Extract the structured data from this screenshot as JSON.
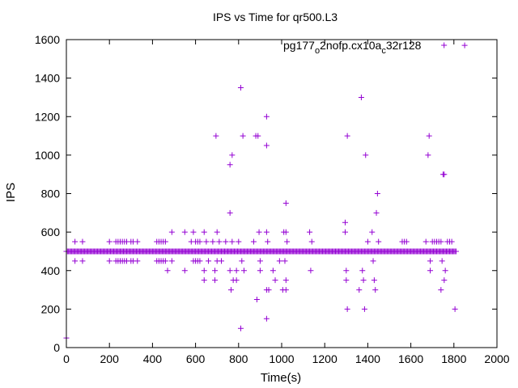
{
  "chart_data": {
    "type": "scatter",
    "title": "IPS vs Time for qr500.L3",
    "xlabel": "Time(s)",
    "ylabel": "IPS",
    "xlim": [
      0,
      2000
    ],
    "ylim": [
      0,
      1600
    ],
    "xticks": [
      "0",
      "200",
      "400",
      "600",
      "800",
      "1000",
      "1200",
      "1400",
      "1600",
      "1800",
      "2000"
    ],
    "yticks": [
      "0",
      "200",
      "400",
      "600",
      "800",
      "1000",
      "1200",
      "1400",
      "1600"
    ],
    "grid": false,
    "legend_position": "top-right",
    "marker_color": "#9400d3",
    "series": [
      {
        "legend": {
          "base": "pg177",
          "sub1": "o",
          "mid": "2nofp.cx10a",
          "sub2": "c",
          "tail": "32r128"
        },
        "baseline": {
          "y": 500,
          "x_from": 0,
          "x_to": 1810,
          "step": 5
        },
        "points": [
          [
            0,
            50
          ],
          [
            40,
            550
          ],
          [
            40,
            450
          ],
          [
            75,
            550
          ],
          [
            75,
            450
          ],
          [
            200,
            550
          ],
          [
            200,
            450
          ],
          [
            230,
            550
          ],
          [
            240,
            550
          ],
          [
            250,
            550
          ],
          [
            260,
            550
          ],
          [
            270,
            550
          ],
          [
            280,
            550
          ],
          [
            300,
            550
          ],
          [
            310,
            550
          ],
          [
            330,
            550
          ],
          [
            230,
            450
          ],
          [
            240,
            450
          ],
          [
            250,
            450
          ],
          [
            260,
            450
          ],
          [
            270,
            450
          ],
          [
            280,
            450
          ],
          [
            300,
            450
          ],
          [
            310,
            450
          ],
          [
            330,
            450
          ],
          [
            420,
            550
          ],
          [
            430,
            550
          ],
          [
            440,
            550
          ],
          [
            450,
            550
          ],
          [
            460,
            550
          ],
          [
            420,
            450
          ],
          [
            430,
            450
          ],
          [
            440,
            450
          ],
          [
            450,
            450
          ],
          [
            460,
            450
          ],
          [
            470,
            400
          ],
          [
            490,
            600
          ],
          [
            490,
            450
          ],
          [
            550,
            600
          ],
          [
            550,
            400
          ],
          [
            580,
            550
          ],
          [
            590,
            600
          ],
          [
            600,
            550
          ],
          [
            610,
            550
          ],
          [
            620,
            550
          ],
          [
            590,
            450
          ],
          [
            600,
            450
          ],
          [
            610,
            450
          ],
          [
            620,
            450
          ],
          [
            640,
            600
          ],
          [
            640,
            400
          ],
          [
            640,
            350
          ],
          [
            650,
            550
          ],
          [
            660,
            450
          ],
          [
            680,
            550
          ],
          [
            690,
            400
          ],
          [
            690,
            350
          ],
          [
            695,
            1100
          ],
          [
            700,
            600
          ],
          [
            700,
            450
          ],
          [
            710,
            550
          ],
          [
            720,
            450
          ],
          [
            740,
            550
          ],
          [
            760,
            950
          ],
          [
            760,
            700
          ],
          [
            760,
            400
          ],
          [
            765,
            300
          ],
          [
            770,
            1000
          ],
          [
            770,
            550
          ],
          [
            775,
            350
          ],
          [
            790,
            400
          ],
          [
            790,
            350
          ],
          [
            800,
            550
          ],
          [
            810,
            1350
          ],
          [
            810,
            100
          ],
          [
            815,
            450
          ],
          [
            820,
            1100
          ],
          [
            825,
            400
          ],
          [
            870,
            550
          ],
          [
            880,
            1100
          ],
          [
            885,
            250
          ],
          [
            890,
            1100
          ],
          [
            895,
            600
          ],
          [
            900,
            450
          ],
          [
            900,
            400
          ],
          [
            930,
            1200
          ],
          [
            930,
            1050
          ],
          [
            930,
            600
          ],
          [
            930,
            300
          ],
          [
            930,
            150
          ],
          [
            935,
            550
          ],
          [
            940,
            300
          ],
          [
            960,
            400
          ],
          [
            970,
            350
          ],
          [
            990,
            450
          ],
          [
            1005,
            300
          ],
          [
            1010,
            600
          ],
          [
            1015,
            450
          ],
          [
            1020,
            750
          ],
          [
            1020,
            600
          ],
          [
            1020,
            350
          ],
          [
            1020,
            300
          ],
          [
            1025,
            550
          ],
          [
            1130,
            600
          ],
          [
            1135,
            400
          ],
          [
            1140,
            550
          ],
          [
            1295,
            650
          ],
          [
            1295,
            600
          ],
          [
            1300,
            400
          ],
          [
            1300,
            350
          ],
          [
            1305,
            200
          ],
          [
            1305,
            1100
          ],
          [
            1360,
            300
          ],
          [
            1370,
            1300
          ],
          [
            1375,
            400
          ],
          [
            1380,
            350
          ],
          [
            1385,
            200
          ],
          [
            1390,
            1000
          ],
          [
            1400,
            550
          ],
          [
            1420,
            600
          ],
          [
            1425,
            450
          ],
          [
            1430,
            350
          ],
          [
            1435,
            300
          ],
          [
            1440,
            700
          ],
          [
            1445,
            800
          ],
          [
            1450,
            550
          ],
          [
            1560,
            550
          ],
          [
            1570,
            550
          ],
          [
            1580,
            550
          ],
          [
            1670,
            550
          ],
          [
            1680,
            1000
          ],
          [
            1685,
            1100
          ],
          [
            1690,
            450
          ],
          [
            1690,
            400
          ],
          [
            1700,
            550
          ],
          [
            1710,
            550
          ],
          [
            1720,
            550
          ],
          [
            1730,
            550
          ],
          [
            1740,
            550
          ],
          [
            1740,
            300
          ],
          [
            1745,
            450
          ],
          [
            1750,
            900
          ],
          [
            1755,
            900
          ],
          [
            1755,
            350
          ],
          [
            1760,
            400
          ],
          [
            1770,
            550
          ],
          [
            1780,
            550
          ],
          [
            1790,
            550
          ],
          [
            1805,
            200
          ],
          [
            1850,
            1570
          ]
        ]
      }
    ]
  }
}
